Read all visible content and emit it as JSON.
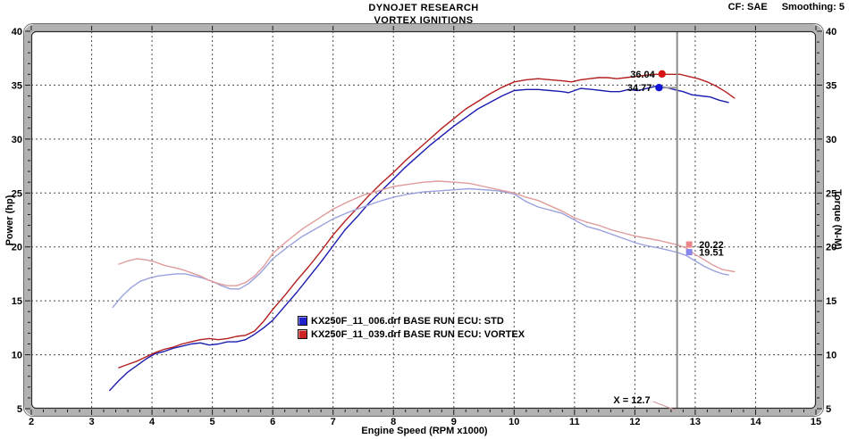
{
  "header": {
    "title": "DYNOJET RESEARCH",
    "subtitle": "VORTEX IGNITIONS",
    "correction": "CF: SAE",
    "smoothing": "Smoothing: 5"
  },
  "chart_data": {
    "type": "line",
    "title": "DYNOJET RESEARCH",
    "subtitle": "VORTEX IGNITIONS",
    "xlabel": "Engine Speed (RPM x1000)",
    "ylabel_left": "Power (hp)",
    "ylabel_right": "Torque (N-M)",
    "xlim": [
      2,
      15
    ],
    "ylim": [
      5,
      40
    ],
    "x_major_ticks": [
      2,
      3,
      4,
      5,
      6,
      7,
      8,
      9,
      10,
      11,
      12,
      13,
      14,
      15
    ],
    "x_minor_step": 0.2,
    "y_major_ticks": [
      5,
      10,
      15,
      20,
      25,
      30,
      35,
      40
    ],
    "y_minor_step": 1,
    "grid": {
      "show": true,
      "style": "dashed"
    },
    "cursor_x": 12.7,
    "cursor_label": "X = 12.7",
    "cursor_color": "#8c8c8c",
    "series": [
      {
        "id": "power-std",
        "name": "KX250F_11_006.drf BASE RUN ECU: STD",
        "unit": "hp",
        "color": "#1c1cb0",
        "points": [
          [
            3.3,
            6.7
          ],
          [
            3.45,
            7.6
          ],
          [
            3.6,
            8.4
          ],
          [
            3.75,
            9.0
          ],
          [
            3.9,
            9.6
          ],
          [
            4.05,
            10.1
          ],
          [
            4.2,
            10.3
          ],
          [
            4.35,
            10.6
          ],
          [
            4.5,
            10.8
          ],
          [
            4.65,
            11.0
          ],
          [
            4.8,
            11.1
          ],
          [
            4.95,
            10.9
          ],
          [
            5.1,
            11.0
          ],
          [
            5.25,
            11.2
          ],
          [
            5.4,
            11.2
          ],
          [
            5.55,
            11.4
          ],
          [
            5.7,
            11.9
          ],
          [
            5.85,
            12.5
          ],
          [
            6.0,
            13.2
          ],
          [
            6.2,
            14.5
          ],
          [
            6.4,
            15.8
          ],
          [
            6.6,
            17.2
          ],
          [
            6.8,
            18.6
          ],
          [
            7.0,
            20.1
          ],
          [
            7.2,
            21.6
          ],
          [
            7.4,
            22.8
          ],
          [
            7.6,
            24.1
          ],
          [
            7.8,
            25.2
          ],
          [
            8.0,
            26.3
          ],
          [
            8.2,
            27.4
          ],
          [
            8.4,
            28.4
          ],
          [
            8.6,
            29.4
          ],
          [
            8.8,
            30.3
          ],
          [
            9.0,
            31.2
          ],
          [
            9.2,
            32.0
          ],
          [
            9.4,
            32.8
          ],
          [
            9.6,
            33.4
          ],
          [
            9.8,
            34.0
          ],
          [
            10.0,
            34.5
          ],
          [
            10.2,
            34.6
          ],
          [
            10.4,
            34.6
          ],
          [
            10.6,
            34.5
          ],
          [
            10.8,
            34.4
          ],
          [
            10.9,
            34.3
          ],
          [
            11.1,
            34.7
          ],
          [
            11.3,
            34.6
          ],
          [
            11.45,
            34.5
          ],
          [
            11.6,
            34.4
          ],
          [
            11.75,
            34.4
          ],
          [
            11.9,
            34.6
          ],
          [
            12.05,
            34.5
          ],
          [
            12.2,
            34.7
          ],
          [
            12.35,
            34.9
          ],
          [
            12.5,
            34.8
          ],
          [
            12.65,
            34.6
          ],
          [
            12.8,
            34.4
          ],
          [
            12.95,
            34.1
          ],
          [
            13.1,
            34.0
          ],
          [
            13.25,
            33.9
          ],
          [
            13.4,
            33.6
          ],
          [
            13.55,
            33.4
          ]
        ]
      },
      {
        "id": "power-vortex",
        "name": "KX250F_11_039.drf BASE RUN ECU: VORTEX",
        "unit": "hp",
        "color": "#b41e1e",
        "points": [
          [
            3.45,
            8.8
          ],
          [
            3.6,
            9.1
          ],
          [
            3.75,
            9.4
          ],
          [
            3.9,
            9.8
          ],
          [
            4.05,
            10.2
          ],
          [
            4.2,
            10.5
          ],
          [
            4.35,
            10.7
          ],
          [
            4.5,
            11.0
          ],
          [
            4.65,
            11.2
          ],
          [
            4.8,
            11.4
          ],
          [
            4.95,
            11.5
          ],
          [
            5.1,
            11.4
          ],
          [
            5.25,
            11.5
          ],
          [
            5.4,
            11.7
          ],
          [
            5.55,
            11.8
          ],
          [
            5.7,
            12.2
          ],
          [
            5.85,
            13.1
          ],
          [
            6.0,
            14.2
          ],
          [
            6.2,
            15.5
          ],
          [
            6.4,
            16.9
          ],
          [
            6.6,
            18.2
          ],
          [
            6.8,
            19.6
          ],
          [
            7.0,
            21.1
          ],
          [
            7.2,
            22.4
          ],
          [
            7.4,
            23.6
          ],
          [
            7.6,
            24.8
          ],
          [
            7.8,
            25.9
          ],
          [
            8.0,
            26.9
          ],
          [
            8.2,
            28.0
          ],
          [
            8.4,
            29.0
          ],
          [
            8.6,
            30.0
          ],
          [
            8.8,
            31.0
          ],
          [
            9.0,
            31.9
          ],
          [
            9.2,
            32.8
          ],
          [
            9.4,
            33.5
          ],
          [
            9.6,
            34.2
          ],
          [
            9.8,
            34.8
          ],
          [
            10.0,
            35.3
          ],
          [
            10.2,
            35.5
          ],
          [
            10.4,
            35.6
          ],
          [
            10.6,
            35.5
          ],
          [
            10.8,
            35.4
          ],
          [
            10.95,
            35.3
          ],
          [
            11.1,
            35.5
          ],
          [
            11.25,
            35.6
          ],
          [
            11.4,
            35.7
          ],
          [
            11.55,
            35.7
          ],
          [
            11.7,
            35.6
          ],
          [
            11.85,
            35.7
          ],
          [
            12.0,
            35.8
          ],
          [
            12.15,
            35.9
          ],
          [
            12.3,
            36.0
          ],
          [
            12.45,
            36.0
          ],
          [
            12.6,
            36.0
          ],
          [
            12.75,
            36.0
          ],
          [
            12.9,
            35.8
          ],
          [
            13.05,
            35.6
          ],
          [
            13.2,
            35.3
          ],
          [
            13.35,
            34.9
          ],
          [
            13.5,
            34.4
          ],
          [
            13.65,
            33.8
          ]
        ]
      },
      {
        "id": "torque-std",
        "name": "KX250F_11_006.drf BASE RUN ECU: STD",
        "unit": "N-M",
        "color": "#9aa2de",
        "points": [
          [
            3.35,
            14.4
          ],
          [
            3.5,
            15.4
          ],
          [
            3.65,
            16.2
          ],
          [
            3.8,
            16.8
          ],
          [
            3.95,
            17.1
          ],
          [
            4.1,
            17.3
          ],
          [
            4.25,
            17.4
          ],
          [
            4.4,
            17.5
          ],
          [
            4.55,
            17.5
          ],
          [
            4.7,
            17.3
          ],
          [
            4.85,
            17.1
          ],
          [
            5.0,
            16.8
          ],
          [
            5.15,
            16.4
          ],
          [
            5.3,
            16.1
          ],
          [
            5.45,
            16.1
          ],
          [
            5.6,
            16.6
          ],
          [
            5.8,
            17.6
          ],
          [
            6.0,
            18.9
          ],
          [
            6.25,
            20.0
          ],
          [
            6.5,
            21.0
          ],
          [
            6.75,
            21.8
          ],
          [
            7.0,
            22.6
          ],
          [
            7.25,
            23.2
          ],
          [
            7.5,
            23.7
          ],
          [
            7.75,
            24.2
          ],
          [
            8.0,
            24.6
          ],
          [
            8.25,
            24.9
          ],
          [
            8.5,
            25.1
          ],
          [
            8.75,
            25.2
          ],
          [
            9.0,
            25.3
          ],
          [
            9.25,
            25.4
          ],
          [
            9.5,
            25.3
          ],
          [
            9.75,
            25.2
          ],
          [
            10.0,
            24.9
          ],
          [
            10.2,
            24.2
          ],
          [
            10.4,
            23.7
          ],
          [
            10.6,
            23.4
          ],
          [
            10.8,
            23.1
          ],
          [
            11.0,
            22.5
          ],
          [
            11.2,
            21.9
          ],
          [
            11.4,
            21.6
          ],
          [
            11.6,
            21.2
          ],
          [
            11.8,
            20.8
          ],
          [
            12.0,
            20.4
          ],
          [
            12.2,
            20.1
          ],
          [
            12.4,
            19.9
          ],
          [
            12.55,
            19.7
          ],
          [
            12.7,
            19.5
          ],
          [
            12.85,
            19.2
          ],
          [
            13.0,
            18.7
          ],
          [
            13.15,
            18.2
          ],
          [
            13.3,
            17.8
          ],
          [
            13.45,
            17.5
          ],
          [
            13.55,
            17.4
          ]
        ]
      },
      {
        "id": "torque-vortex",
        "name": "KX250F_11_039.drf BASE RUN ECU: VORTEX",
        "unit": "N-M",
        "color": "#e09c9c",
        "points": [
          [
            3.45,
            18.4
          ],
          [
            3.6,
            18.7
          ],
          [
            3.75,
            18.9
          ],
          [
            3.9,
            18.8
          ],
          [
            4.05,
            18.6
          ],
          [
            4.2,
            18.3
          ],
          [
            4.35,
            18.1
          ],
          [
            4.5,
            17.9
          ],
          [
            4.65,
            17.6
          ],
          [
            4.8,
            17.3
          ],
          [
            4.95,
            16.9
          ],
          [
            5.1,
            16.6
          ],
          [
            5.25,
            16.4
          ],
          [
            5.4,
            16.4
          ],
          [
            5.55,
            16.7
          ],
          [
            5.7,
            17.3
          ],
          [
            5.85,
            18.2
          ],
          [
            6.0,
            19.4
          ],
          [
            6.25,
            20.6
          ],
          [
            6.5,
            21.7
          ],
          [
            6.75,
            22.6
          ],
          [
            7.0,
            23.5
          ],
          [
            7.25,
            24.2
          ],
          [
            7.5,
            24.8
          ],
          [
            7.75,
            25.2
          ],
          [
            8.0,
            25.6
          ],
          [
            8.25,
            25.8
          ],
          [
            8.5,
            26.0
          ],
          [
            8.75,
            26.1
          ],
          [
            9.0,
            26.0
          ],
          [
            9.25,
            25.9
          ],
          [
            9.5,
            25.6
          ],
          [
            9.75,
            25.3
          ],
          [
            10.0,
            25.0
          ],
          [
            10.2,
            24.6
          ],
          [
            10.4,
            24.3
          ],
          [
            10.6,
            23.8
          ],
          [
            10.8,
            23.3
          ],
          [
            11.0,
            22.7
          ],
          [
            11.2,
            22.3
          ],
          [
            11.4,
            22.0
          ],
          [
            11.6,
            21.6
          ],
          [
            11.8,
            21.3
          ],
          [
            12.0,
            21.0
          ],
          [
            12.2,
            20.8
          ],
          [
            12.4,
            20.6
          ],
          [
            12.55,
            20.4
          ],
          [
            12.7,
            20.2
          ],
          [
            12.85,
            19.9
          ],
          [
            13.0,
            19.3
          ],
          [
            13.15,
            18.8
          ],
          [
            13.3,
            18.3
          ],
          [
            13.45,
            17.9
          ],
          [
            13.65,
            17.7
          ]
        ]
      }
    ],
    "markers": [
      {
        "label": "36.04",
        "x": 12.45,
        "y": 36.04,
        "shape": "circle",
        "color": "#d81414",
        "label_side": "left"
      },
      {
        "label": "34.77",
        "x": 12.4,
        "y": 34.77,
        "shape": "circle",
        "color": "#1414d8",
        "label_side": "left",
        "tie_to_cursor": true
      },
      {
        "label": "20.22",
        "x": 12.9,
        "y": 20.22,
        "shape": "square",
        "color": "#ec8585",
        "label_side": "right"
      },
      {
        "label": "19.51",
        "x": 12.9,
        "y": 19.51,
        "shape": "square",
        "color": "#8585ec",
        "label_side": "right"
      }
    ],
    "legend": [
      {
        "label": "KX250F_11_006.drf BASE RUN ECU: STD",
        "color": "#2222cc"
      },
      {
        "label": "KX250F_11_039.drf BASE RUN ECU: VORTEX",
        "color": "#cc2222"
      }
    ],
    "legend_position": "inside-lower-middle"
  }
}
